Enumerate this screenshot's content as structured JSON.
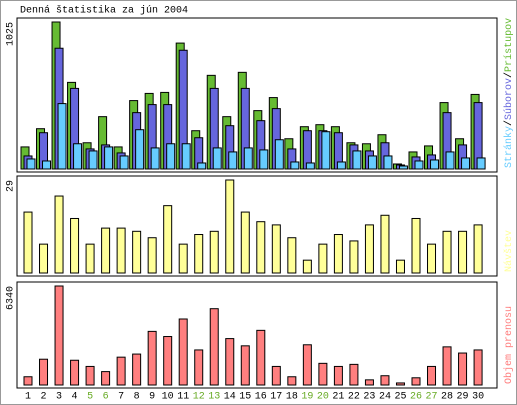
{
  "chart_data": [
    {
      "type": "bar",
      "title": "Denná štatistika za jún 2004",
      "ylim": [
        0,
        1025
      ],
      "yticks": [
        1025
      ],
      "legend_separator": "/",
      "series": [
        {
          "name": "Prístupov",
          "color": "#66bb33",
          "values": [
            154,
            281,
            1025,
            604,
            183,
            365,
            154,
            477,
            527,
            534,
            878,
            267,
            653,
            365,
            674,
            407,
            498,
            211,
            295,
            309,
            295,
            183,
            176,
            239,
            35,
            119,
            161,
            463,
            211,
            520
          ]
        },
        {
          "name": "Súborov",
          "color": "#6666dd",
          "values": [
            91,
            253,
            842,
            562,
            140,
            168,
            112,
            393,
            449,
            449,
            828,
            218,
            562,
            302,
            562,
            337,
            421,
            140,
            267,
            267,
            253,
            168,
            126,
            183,
            28,
            84,
            98,
            393,
            168,
            463
          ]
        },
        {
          "name": "Stránky",
          "color": "#66ccff",
          "values": [
            70,
            56,
            456,
            176,
            126,
            154,
            91,
            274,
            147,
            176,
            176,
            42,
            147,
            119,
            147,
            133,
            204,
            49,
            42,
            260,
            49,
            126,
            91,
            91,
            21,
            56,
            63,
            119,
            77,
            77
          ]
        }
      ]
    },
    {
      "type": "bar",
      "ylim": [
        0,
        29
      ],
      "yticks": [
        29
      ],
      "series": [
        {
          "name": "Návštev",
          "color": "#ffff99",
          "values": [
            19,
            9,
            24,
            17,
            9,
            14,
            14,
            13,
            11,
            21,
            9,
            12,
            13,
            29,
            19,
            16,
            15,
            11,
            4,
            9,
            12,
            10,
            15,
            18,
            4,
            17,
            9,
            13,
            13,
            15
          ]
        }
      ]
    },
    {
      "type": "bar",
      "ylim": [
        0,
        6340
      ],
      "yticks": [
        6340
      ],
      "categories": [
        1,
        2,
        3,
        4,
        5,
        6,
        7,
        8,
        9,
        10,
        11,
        12,
        13,
        14,
        15,
        16,
        17,
        18,
        19,
        20,
        21,
        22,
        23,
        24,
        25,
        26,
        27,
        28,
        29,
        30
      ],
      "weekends": [
        5,
        6,
        12,
        13,
        19,
        20,
        26,
        27
      ],
      "weekend_color": "#66aa22",
      "series": [
        {
          "name": "Objem prenosu",
          "color": "#ff7f7f",
          "values": [
            528,
            1651,
            6340,
            1585,
            1189,
            858,
            1783,
            1981,
            3434,
            3104,
            4227,
            2245,
            4887,
            2972,
            2509,
            3500,
            1189,
            528,
            2576,
            1387,
            1189,
            1321,
            330,
            594,
            132,
            462,
            1189,
            2443,
            2047,
            2245
          ]
        }
      ]
    }
  ]
}
